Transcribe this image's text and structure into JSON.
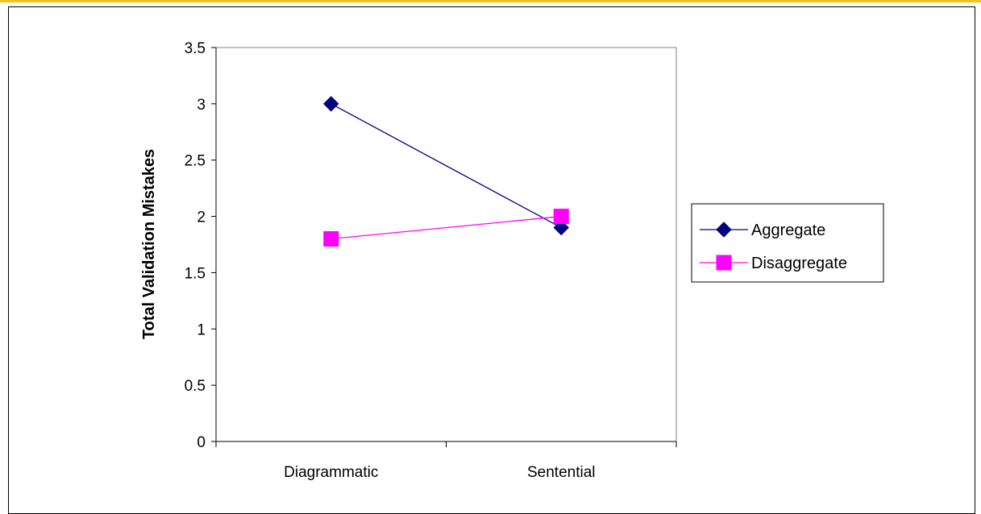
{
  "chart_data": {
    "type": "line",
    "categories": [
      "Diagrammatic",
      "Sentential"
    ],
    "ylabel": "Total Validation Mistakes",
    "xlabel": "",
    "ylim": [
      0,
      3.5
    ],
    "yticks": [
      0,
      0.5,
      1,
      1.5,
      2,
      2.5,
      3,
      3.5
    ],
    "ytick_labels": [
      "0",
      "0.5",
      "1",
      "1.5",
      "2",
      "2.5",
      "3",
      "3.5"
    ],
    "grid": false,
    "legend_position": "right",
    "series": [
      {
        "name": "Aggregate",
        "values": [
          3.0,
          1.9
        ],
        "color": "#000080",
        "marker": "diamond"
      },
      {
        "name": "Disaggregate",
        "values": [
          1.8,
          2.0
        ],
        "color": "#ff00ff",
        "marker": "square"
      }
    ]
  },
  "colors": {
    "accent_rule": "#f0c419"
  }
}
